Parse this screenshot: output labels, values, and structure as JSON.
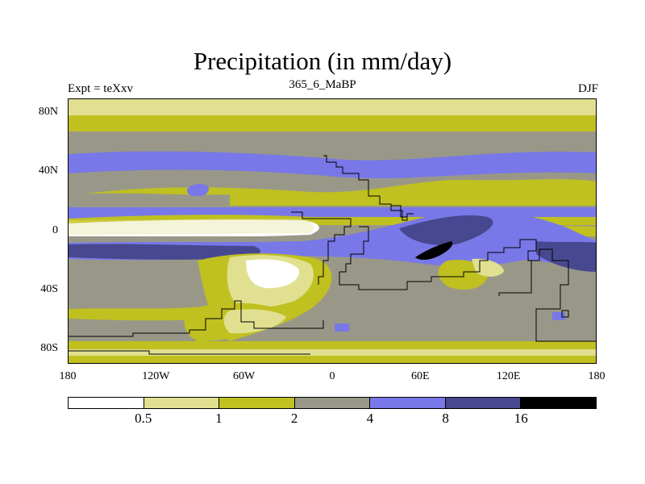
{
  "title": "Precipitation (in mm/day)",
  "experiment_label": "Expt = teXxv",
  "center_label": "365_6_MaBP",
  "season_label": "DJF",
  "y_axis": {
    "ticks": [
      "80N",
      "40N",
      "0",
      "40S",
      "80S"
    ],
    "lat_values": [
      80,
      40,
      0,
      -40,
      -80
    ]
  },
  "x_axis": {
    "ticks": [
      "180",
      "120W",
      "60W",
      "0",
      "60E",
      "120E",
      "180"
    ],
    "lon_values": [
      -180,
      -120,
      -60,
      0,
      60,
      120,
      180
    ]
  },
  "colorbar": {
    "colors": [
      "#ffffff",
      "#e0e090",
      "#c0c020",
      "#999888",
      "#7878e8",
      "#484890",
      "#000000"
    ],
    "levels": [
      "0.5",
      "1",
      "2",
      "4",
      "8",
      "16"
    ]
  },
  "map_colors": {
    "white": "#ffffff",
    "light_yellow": "#e0e090",
    "olive": "#c0c020",
    "gray": "#999888",
    "light_blue": "#7878e8",
    "dark_blue": "#484890",
    "black": "#000000"
  }
}
